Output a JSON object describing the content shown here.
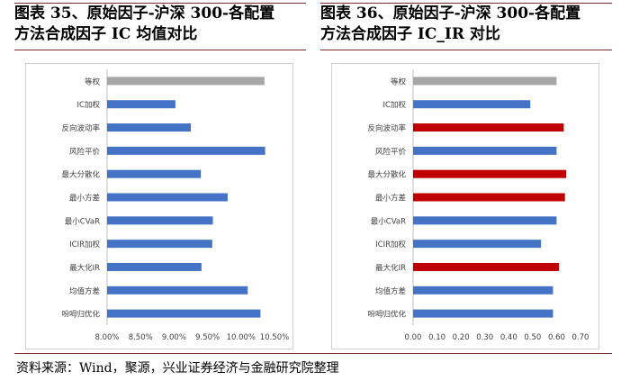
{
  "source_note": "资料来源：Wind，聚源，兴业证券经济与金融研究院整理",
  "colors": {
    "blue": "#4472C4",
    "gray": "#A6A6A6",
    "red": "#C00000"
  },
  "chart_data": [
    {
      "type": "bar",
      "orientation": "horizontal",
      "title_line1": "图表 35、原始因子-沪深 300-各配置",
      "title_line2": "方法合成因子 IC 均值对比",
      "categories": [
        "等权",
        "IC加权",
        "反向波动率",
        "风险平价",
        "最大分散化",
        "最小方差",
        "最小CVaR",
        "ICIR加权",
        "最大化IR",
        "均值方差",
        "吩呣归优化"
      ],
      "values": [
        10.35,
        9.02,
        9.25,
        10.36,
        9.4,
        9.8,
        9.58,
        9.57,
        9.41,
        10.1,
        10.29
      ],
      "bar_colors": [
        "gray",
        "blue",
        "blue",
        "blue",
        "blue",
        "blue",
        "blue",
        "blue",
        "blue",
        "blue",
        "blue"
      ],
      "xlim": [
        8.0,
        10.5
      ],
      "xticks": [
        "8.00%",
        "8.50%",
        "9.00%",
        "9.50%",
        "10.00%",
        "10.50%"
      ],
      "xtick_values": [
        8.0,
        8.5,
        9.0,
        9.5,
        10.0,
        10.5
      ]
    },
    {
      "type": "bar",
      "orientation": "horizontal",
      "title_line1": "图表 36、原始因子-沪深 300-各配置",
      "title_line2": "方法合成因子 IC_IR 对比",
      "categories": [
        "等权",
        "IC加权",
        "反向波动率",
        "风险平价",
        "最大分散化",
        "最小方差",
        "最小CVaR",
        "ICIR加权",
        "最大化IR",
        "均值方差",
        "吩呣归优化"
      ],
      "values": [
        0.6,
        0.49,
        0.63,
        0.6,
        0.64,
        0.635,
        0.6,
        0.535,
        0.61,
        0.585,
        0.585
      ],
      "bar_colors": [
        "gray",
        "blue",
        "red",
        "blue",
        "red",
        "red",
        "blue",
        "blue",
        "red",
        "blue",
        "blue"
      ],
      "xlim": [
        0.0,
        0.7
      ],
      "xticks": [
        "0.00",
        "0.10",
        "0.20",
        "0.30",
        "0.40",
        "0.50",
        "0.60",
        "0.70"
      ],
      "xtick_values": [
        0.0,
        0.1,
        0.2,
        0.3,
        0.4,
        0.5,
        0.6,
        0.7
      ]
    }
  ]
}
